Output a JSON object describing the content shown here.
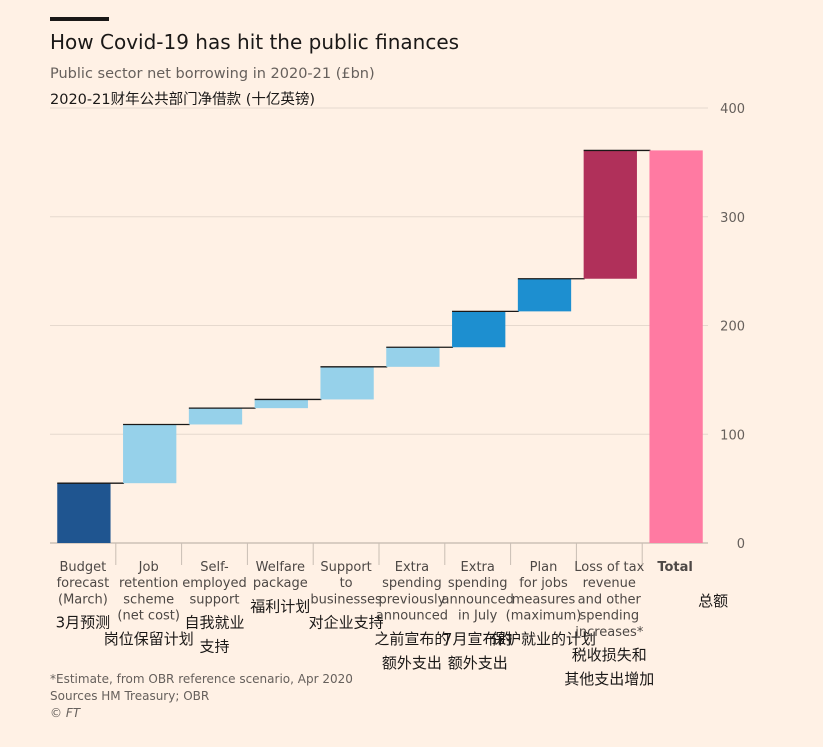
{
  "header": {
    "title": "How Covid-19 has hit the public finances",
    "subtitle": "Public sector net borrowing in 2020-21 (£bn)",
    "subtitle_cn": "2020-21财年公共部门净借款 (十亿英镑)"
  },
  "footer": {
    "note": "*Estimate, from OBR reference scenario, Apr 2020",
    "sources": "Sources HM Treasury; OBR",
    "credit": "© FT"
  },
  "colors": {
    "background": "#fff1e5",
    "grid": "#e6d9ce",
    "dark_blue": "#1f5590",
    "light_blue": "#96d1ea",
    "mid_blue": "#1d8fd0",
    "crimson": "#b0305a",
    "pink": "#ff7aa2"
  },
  "chart_data": {
    "type": "bar",
    "subtype": "waterfall",
    "ylim": [
      0,
      400
    ],
    "yticks": [
      0,
      100,
      200,
      300,
      400
    ],
    "y_axis_side": "right",
    "grid": true,
    "categories": [
      {
        "label_lines": [
          "Budget",
          "forecast",
          "(March)"
        ],
        "label_cn": [
          "3月预测"
        ],
        "value": 55,
        "color": "dark_blue"
      },
      {
        "label_lines": [
          "Job",
          "retention",
          "scheme",
          "(net cost)"
        ],
        "label_cn": [
          "岗位保留计划"
        ],
        "value": 54,
        "color": "light_blue"
      },
      {
        "label_lines": [
          "Self-",
          "employed",
          "support"
        ],
        "label_cn": [
          "自我就业",
          "支持"
        ],
        "value": 15,
        "color": "light_blue"
      },
      {
        "label_lines": [
          "Welfare",
          "package"
        ],
        "label_cn": [
          "福利计划"
        ],
        "value": 8,
        "color": "light_blue"
      },
      {
        "label_lines": [
          "Support",
          "to",
          "businesses"
        ],
        "label_cn": [
          "对企业支持"
        ],
        "value": 30,
        "color": "light_blue"
      },
      {
        "label_lines": [
          "Extra",
          "spending",
          "previously",
          "announced"
        ],
        "label_cn": [
          "之前宣布的",
          "额外支出"
        ],
        "value": 18,
        "color": "light_blue"
      },
      {
        "label_lines": [
          "Extra",
          "spending",
          "announced",
          "in July"
        ],
        "label_cn": [
          "7月宣布的",
          "额外支出"
        ],
        "value": 33,
        "color": "mid_blue"
      },
      {
        "label_lines": [
          "Plan",
          "for jobs",
          "measures",
          "(maximum)"
        ],
        "label_cn": [
          "保护就业的计划"
        ],
        "value": 30,
        "color": "mid_blue"
      },
      {
        "label_lines": [
          "Loss of tax",
          "revenue",
          "and other",
          "spending",
          "increases*"
        ],
        "label_cn": [
          "税收损失和",
          "其他支出增加"
        ],
        "value": 118,
        "color": "crimson"
      },
      {
        "label_lines": [
          "Total"
        ],
        "label_cn": [
          "总额"
        ],
        "value": 361,
        "color": "pink",
        "is_total": true
      }
    ]
  }
}
